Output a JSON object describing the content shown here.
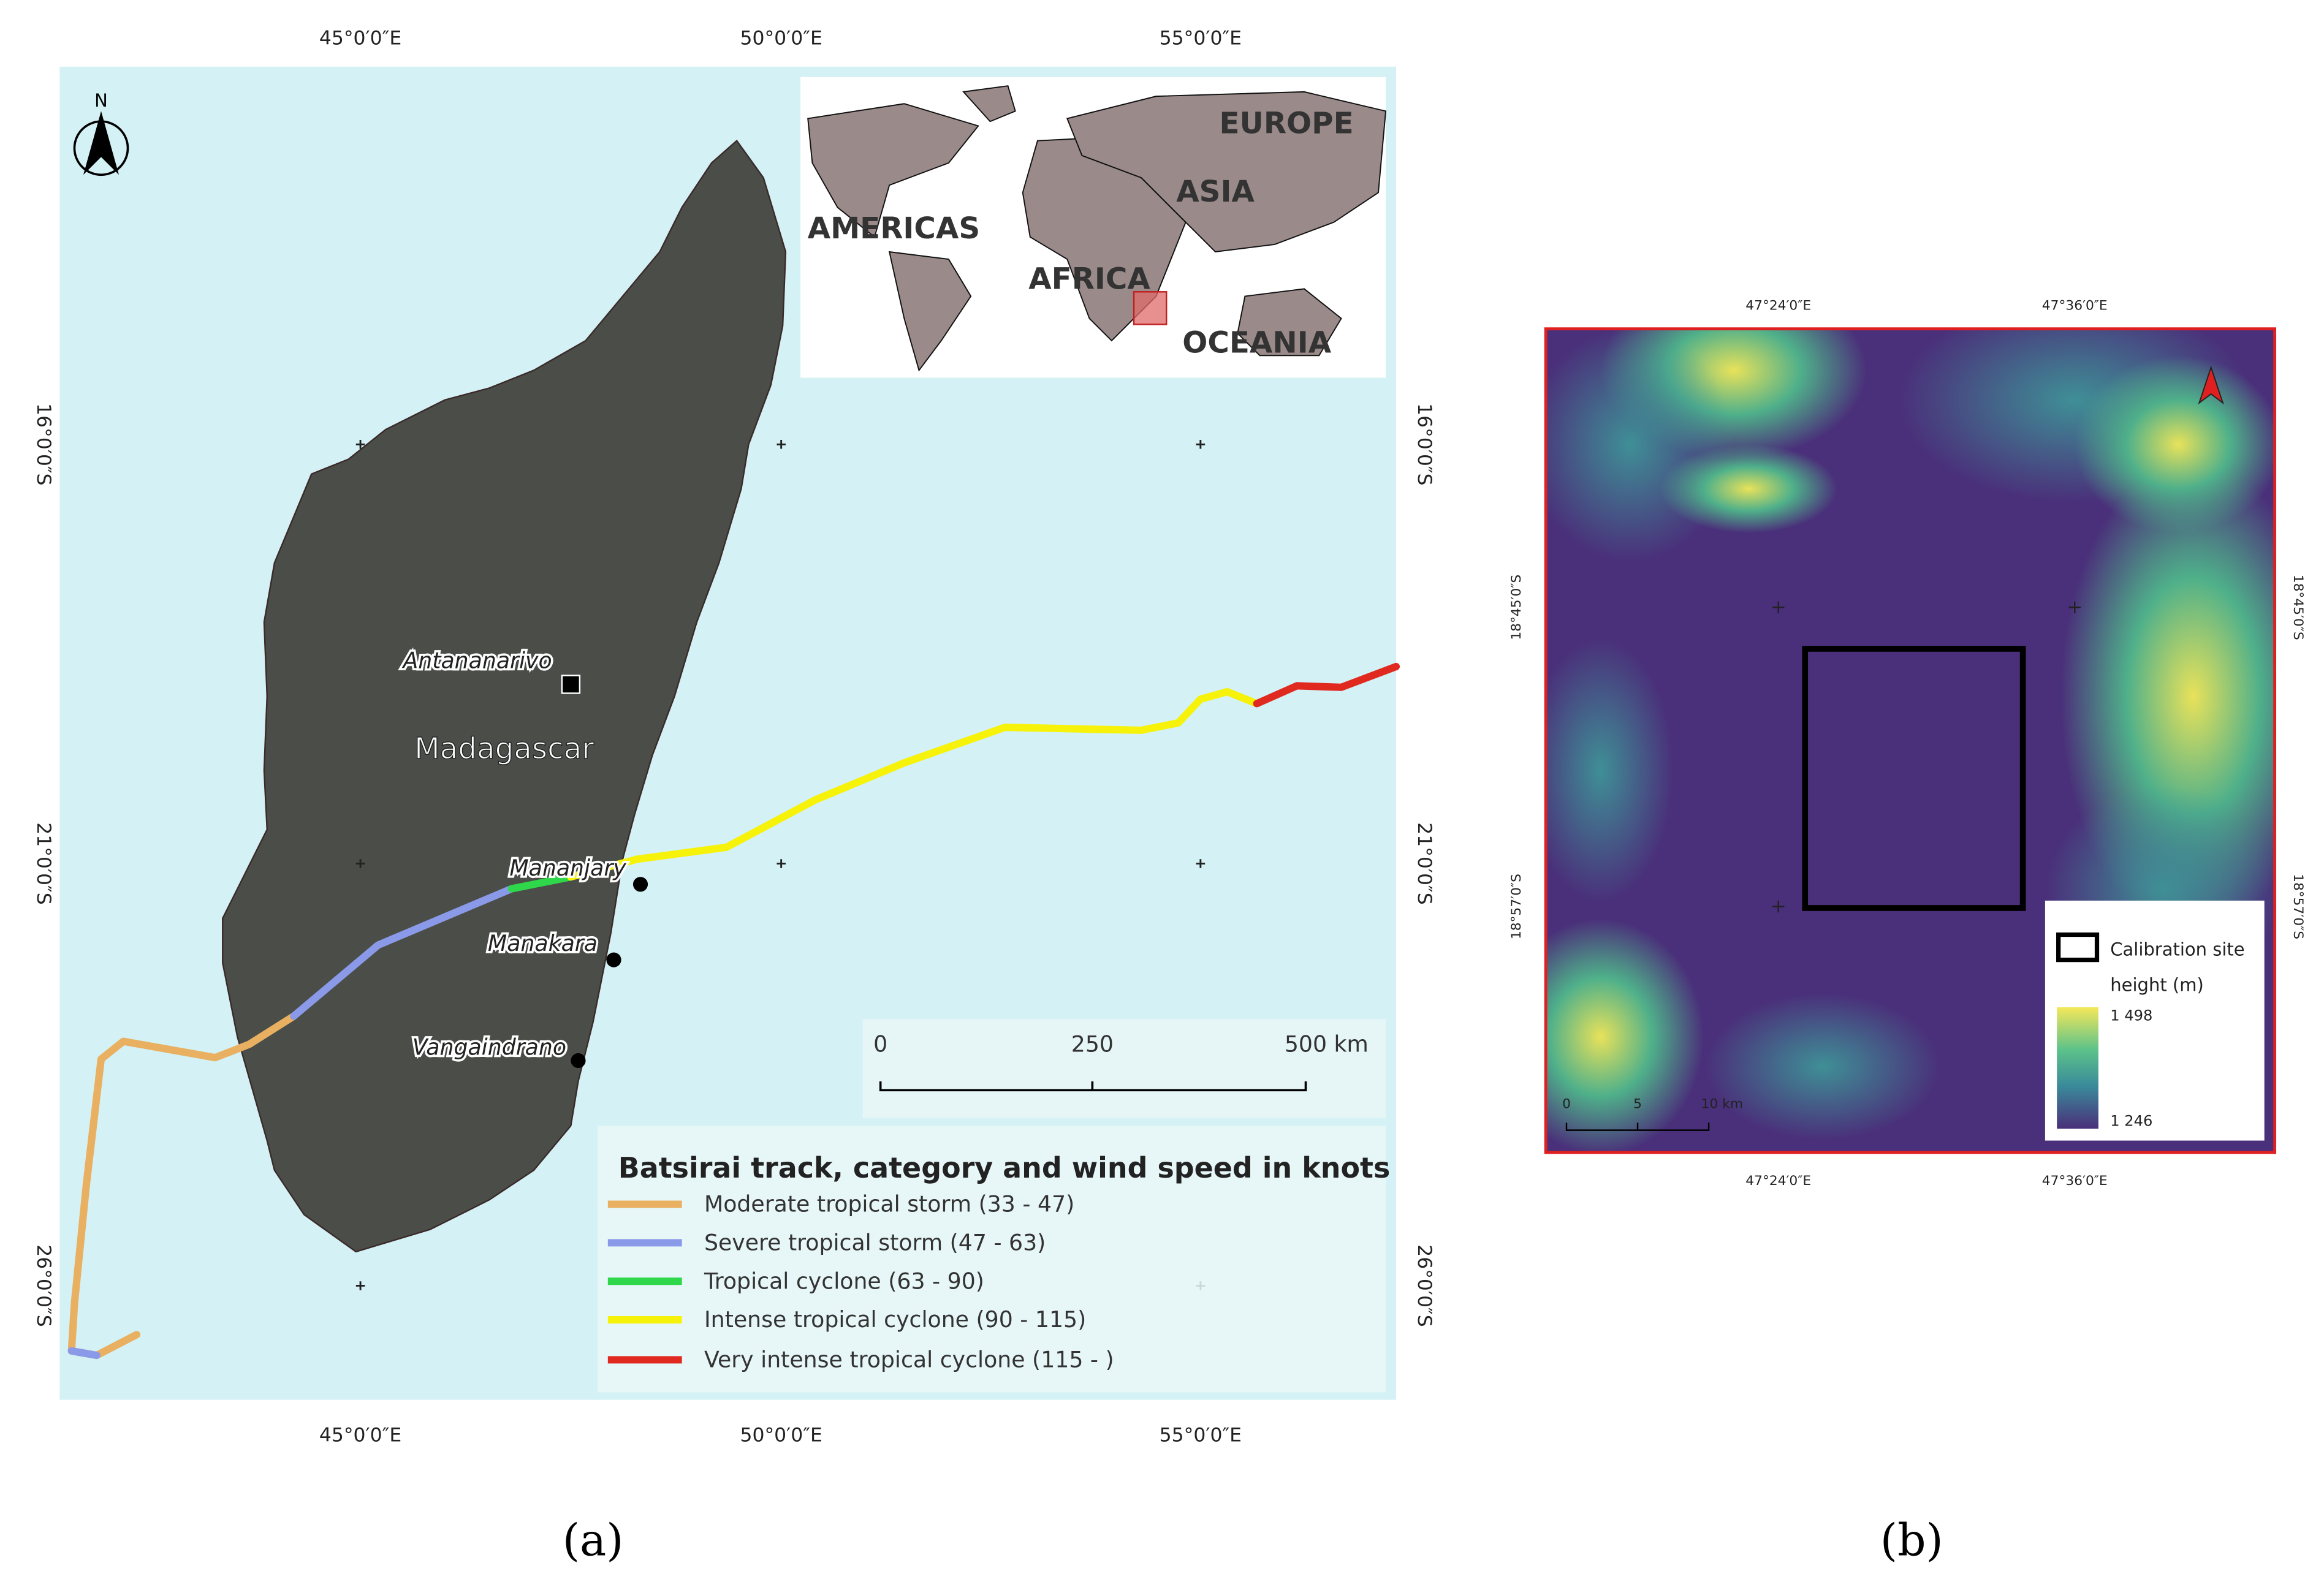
{
  "panel_a": {
    "top_axis_labels": [
      "45°0′0″E",
      "50°0′0″E",
      "55°0′0″E"
    ],
    "bottom_axis_labels": [
      "45°0′0″E",
      "50°0′0″E",
      "55°0′0″E"
    ],
    "left_axis_labels": [
      "16°0′0″S",
      "21°0′0″S",
      "26°0′0″S"
    ],
    "right_axis_labels": [
      "16°0′0″S",
      "21°0′0″S",
      "26°0′0″S"
    ],
    "north_label": "N",
    "inset_labels": [
      "EUROPE",
      "ASIA",
      "AMERICAS",
      "AFRICA",
      "OCEANIA"
    ],
    "country": "Madagascar",
    "cities": [
      "Antananarivo",
      "Mananjary",
      "Manakara",
      "Vangaindrano"
    ],
    "scale_labels": [
      "0",
      "250",
      "500 km"
    ],
    "legend": {
      "title": "Batsirai track, category and wind speed in knots",
      "items": [
        "Moderate tropical storm (33 - 47)",
        "Severe tropical storm (47 - 63)",
        "Tropical cyclone (63 - 90)",
        "Intense tropical cyclone (90 - 115)",
        "Very intense tropical cyclone (115 - )"
      ]
    },
    "caption": "(a)"
  },
  "panel_b": {
    "top_axis_labels": [
      "47°24′0″E",
      "47°36′0″E"
    ],
    "bottom_axis_labels": [
      "47°24′0″E",
      "47°36′0″E"
    ],
    "left_axis_labels": [
      "18°45′0″S",
      "18°57′0″S"
    ],
    "right_axis_labels": [
      "18°45′0″S",
      "18°57′0″S"
    ],
    "legend": {
      "site": "Calibration site",
      "height_title": "height (m)",
      "max": "1 498",
      "min": "1 246"
    },
    "scale_labels": [
      "0",
      "5",
      "10 km"
    ],
    "caption": "(b)"
  }
}
